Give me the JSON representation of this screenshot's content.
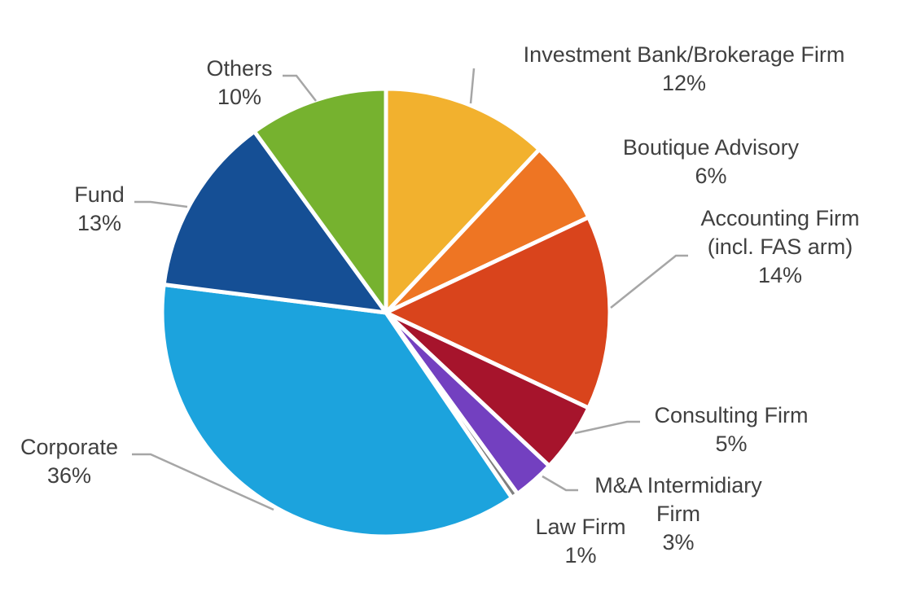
{
  "chart_data": {
    "type": "pie",
    "title": "",
    "slices": [
      {
        "name": "Investment Bank/Brokerage Firm",
        "lines": [
          "Investment Bank/Brokerage Firm"
        ],
        "value": 12,
        "pct_label": "12%",
        "color": "#f2b12e"
      },
      {
        "name": "Boutique Advisory",
        "lines": [
          "Boutique Advisory"
        ],
        "value": 6,
        "pct_label": "6%",
        "color": "#ee7523"
      },
      {
        "name": "Accounting Firm (incl. FAS arm)",
        "lines": [
          "Accounting Firm",
          "(incl. FAS arm)"
        ],
        "value": 14,
        "pct_label": "14%",
        "color": "#d9441c"
      },
      {
        "name": "Consulting Firm",
        "lines": [
          "Consulting Firm"
        ],
        "value": 5,
        "pct_label": "5%",
        "color": "#a6142c"
      },
      {
        "name": "M&A Intermidiary Firm",
        "lines": [
          "M&A Intermidiary",
          "Firm"
        ],
        "value": 3,
        "pct_label": "3%",
        "color": "#7340c0"
      },
      {
        "name": "Law Firm",
        "lines": [
          "Law Firm"
        ],
        "value": 0.5,
        "pct_label": "1%",
        "color": "#7f7f7f"
      },
      {
        "name": "Corporate",
        "lines": [
          "Corporate"
        ],
        "value": 36.5,
        "pct_label": "36%",
        "color": "#1ca3dd"
      },
      {
        "name": "Fund",
        "lines": [
          "Fund"
        ],
        "value": 13,
        "pct_label": "13%",
        "color": "#154f95"
      },
      {
        "name": "Others",
        "lines": [
          "Others"
        ],
        "value": 10,
        "pct_label": "10%",
        "color": "#76b22f"
      }
    ],
    "start_angle": "12 o'clock",
    "direction": "clockwise",
    "legend": "none"
  }
}
